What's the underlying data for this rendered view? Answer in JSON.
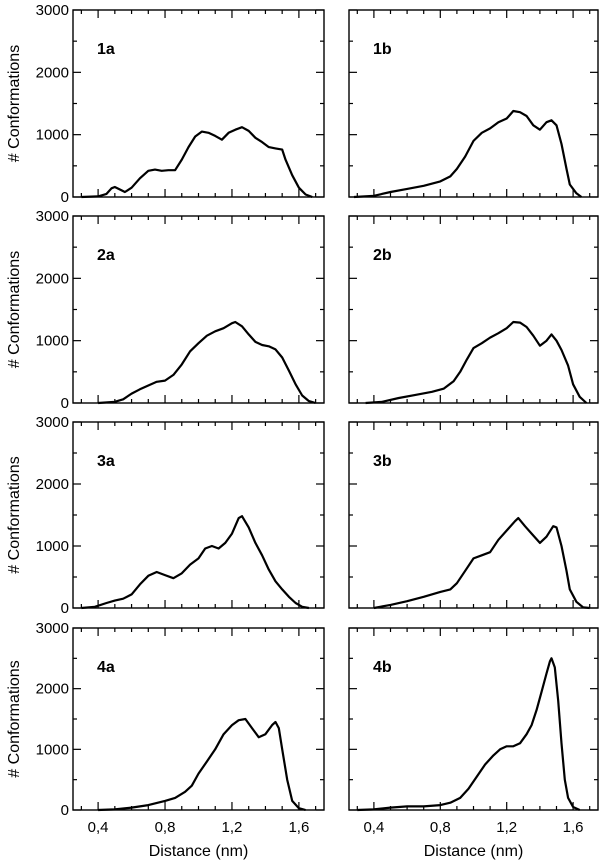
{
  "chart_data": {
    "type": "line",
    "layout": "4x2 grid of panels sharing axes",
    "xlabel": "Distance (nm)",
    "ylabel": "# Conformations",
    "xlim": [
      0.25,
      1.75
    ],
    "ylim": [
      0,
      3000
    ],
    "x_ticks": [
      0.4,
      0.8,
      1.2,
      1.6
    ],
    "x_tick_labels": [
      "0,4",
      "0,8",
      "1,2",
      "1,6"
    ],
    "y_ticks": [
      0,
      1000,
      2000,
      3000
    ],
    "y_tick_labels": [
      "0",
      "1000",
      "2000",
      "3000"
    ],
    "grid": false,
    "panels": [
      {
        "label": "1a",
        "points": [
          [
            0.3,
            0
          ],
          [
            0.4,
            10
          ],
          [
            0.45,
            50
          ],
          [
            0.48,
            140
          ],
          [
            0.5,
            160
          ],
          [
            0.53,
            120
          ],
          [
            0.56,
            80
          ],
          [
            0.6,
            150
          ],
          [
            0.65,
            300
          ],
          [
            0.7,
            420
          ],
          [
            0.74,
            440
          ],
          [
            0.78,
            420
          ],
          [
            0.82,
            430
          ],
          [
            0.86,
            430
          ],
          [
            0.9,
            600
          ],
          [
            0.94,
            800
          ],
          [
            0.98,
            970
          ],
          [
            1.02,
            1050
          ],
          [
            1.06,
            1030
          ],
          [
            1.1,
            980
          ],
          [
            1.14,
            920
          ],
          [
            1.18,
            1030
          ],
          [
            1.22,
            1080
          ],
          [
            1.26,
            1120
          ],
          [
            1.3,
            1060
          ],
          [
            1.34,
            950
          ],
          [
            1.38,
            880
          ],
          [
            1.42,
            800
          ],
          [
            1.46,
            780
          ],
          [
            1.5,
            760
          ],
          [
            1.52,
            600
          ],
          [
            1.56,
            350
          ],
          [
            1.6,
            150
          ],
          [
            1.64,
            40
          ],
          [
            1.68,
            0
          ]
        ]
      },
      {
        "label": "1b",
        "points": [
          [
            0.28,
            0
          ],
          [
            0.4,
            20
          ],
          [
            0.5,
            80
          ],
          [
            0.6,
            130
          ],
          [
            0.7,
            180
          ],
          [
            0.8,
            250
          ],
          [
            0.86,
            330
          ],
          [
            0.9,
            450
          ],
          [
            0.95,
            650
          ],
          [
            1.0,
            900
          ],
          [
            1.05,
            1030
          ],
          [
            1.1,
            1100
          ],
          [
            1.15,
            1200
          ],
          [
            1.2,
            1260
          ],
          [
            1.24,
            1380
          ],
          [
            1.28,
            1360
          ],
          [
            1.32,
            1300
          ],
          [
            1.36,
            1150
          ],
          [
            1.4,
            1080
          ],
          [
            1.44,
            1200
          ],
          [
            1.47,
            1230
          ],
          [
            1.5,
            1150
          ],
          [
            1.53,
            850
          ],
          [
            1.56,
            450
          ],
          [
            1.58,
            200
          ],
          [
            1.62,
            60
          ],
          [
            1.65,
            0
          ]
        ]
      },
      {
        "label": "2a",
        "points": [
          [
            0.4,
            0
          ],
          [
            0.5,
            20
          ],
          [
            0.55,
            60
          ],
          [
            0.6,
            150
          ],
          [
            0.65,
            220
          ],
          [
            0.7,
            280
          ],
          [
            0.75,
            340
          ],
          [
            0.8,
            360
          ],
          [
            0.85,
            450
          ],
          [
            0.9,
            620
          ],
          [
            0.95,
            830
          ],
          [
            1.0,
            960
          ],
          [
            1.05,
            1080
          ],
          [
            1.1,
            1150
          ],
          [
            1.15,
            1200
          ],
          [
            1.2,
            1280
          ],
          [
            1.22,
            1300
          ],
          [
            1.26,
            1230
          ],
          [
            1.3,
            1100
          ],
          [
            1.34,
            980
          ],
          [
            1.38,
            930
          ],
          [
            1.42,
            910
          ],
          [
            1.46,
            860
          ],
          [
            1.5,
            730
          ],
          [
            1.54,
            520
          ],
          [
            1.58,
            300
          ],
          [
            1.62,
            120
          ],
          [
            1.66,
            30
          ],
          [
            1.7,
            0
          ]
        ]
      },
      {
        "label": "2b",
        "points": [
          [
            0.35,
            0
          ],
          [
            0.45,
            20
          ],
          [
            0.55,
            80
          ],
          [
            0.65,
            130
          ],
          [
            0.75,
            180
          ],
          [
            0.82,
            230
          ],
          [
            0.88,
            350
          ],
          [
            0.92,
            500
          ],
          [
            0.96,
            700
          ],
          [
            1.0,
            880
          ],
          [
            1.05,
            960
          ],
          [
            1.1,
            1050
          ],
          [
            1.15,
            1120
          ],
          [
            1.2,
            1200
          ],
          [
            1.24,
            1300
          ],
          [
            1.28,
            1290
          ],
          [
            1.32,
            1220
          ],
          [
            1.36,
            1080
          ],
          [
            1.4,
            920
          ],
          [
            1.44,
            1000
          ],
          [
            1.47,
            1100
          ],
          [
            1.5,
            1000
          ],
          [
            1.53,
            850
          ],
          [
            1.57,
            600
          ],
          [
            1.6,
            300
          ],
          [
            1.64,
            100
          ],
          [
            1.68,
            0
          ]
        ]
      },
      {
        "label": "3a",
        "points": [
          [
            0.3,
            0
          ],
          [
            0.38,
            20
          ],
          [
            0.45,
            80
          ],
          [
            0.5,
            120
          ],
          [
            0.55,
            150
          ],
          [
            0.6,
            220
          ],
          [
            0.65,
            380
          ],
          [
            0.7,
            520
          ],
          [
            0.75,
            580
          ],
          [
            0.8,
            530
          ],
          [
            0.85,
            480
          ],
          [
            0.9,
            560
          ],
          [
            0.95,
            700
          ],
          [
            1.0,
            800
          ],
          [
            1.04,
            960
          ],
          [
            1.08,
            1000
          ],
          [
            1.12,
            960
          ],
          [
            1.16,
            1050
          ],
          [
            1.2,
            1200
          ],
          [
            1.24,
            1450
          ],
          [
            1.26,
            1480
          ],
          [
            1.3,
            1300
          ],
          [
            1.34,
            1050
          ],
          [
            1.38,
            850
          ],
          [
            1.42,
            620
          ],
          [
            1.46,
            430
          ],
          [
            1.5,
            300
          ],
          [
            1.54,
            180
          ],
          [
            1.58,
            80
          ],
          [
            1.62,
            20
          ],
          [
            1.66,
            0
          ]
        ]
      },
      {
        "label": "3b",
        "points": [
          [
            0.4,
            0
          ],
          [
            0.5,
            50
          ],
          [
            0.6,
            110
          ],
          [
            0.7,
            180
          ],
          [
            0.8,
            260
          ],
          [
            0.86,
            300
          ],
          [
            0.9,
            400
          ],
          [
            0.95,
            600
          ],
          [
            1.0,
            800
          ],
          [
            1.05,
            850
          ],
          [
            1.1,
            900
          ],
          [
            1.15,
            1100
          ],
          [
            1.2,
            1250
          ],
          [
            1.25,
            1400
          ],
          [
            1.27,
            1450
          ],
          [
            1.31,
            1320
          ],
          [
            1.35,
            1200
          ],
          [
            1.4,
            1050
          ],
          [
            1.44,
            1150
          ],
          [
            1.48,
            1320
          ],
          [
            1.5,
            1300
          ],
          [
            1.53,
            1000
          ],
          [
            1.56,
            600
          ],
          [
            1.58,
            300
          ],
          [
            1.62,
            100
          ],
          [
            1.66,
            10
          ],
          [
            1.7,
            0
          ]
        ]
      },
      {
        "label": "4a",
        "points": [
          [
            0.4,
            0
          ],
          [
            0.5,
            10
          ],
          [
            0.6,
            40
          ],
          [
            0.7,
            80
          ],
          [
            0.8,
            150
          ],
          [
            0.86,
            200
          ],
          [
            0.92,
            300
          ],
          [
            0.96,
            400
          ],
          [
            1.0,
            600
          ],
          [
            1.05,
            800
          ],
          [
            1.1,
            1000
          ],
          [
            1.15,
            1250
          ],
          [
            1.2,
            1400
          ],
          [
            1.24,
            1480
          ],
          [
            1.28,
            1500
          ],
          [
            1.32,
            1350
          ],
          [
            1.36,
            1200
          ],
          [
            1.4,
            1250
          ],
          [
            1.44,
            1400
          ],
          [
            1.46,
            1450
          ],
          [
            1.48,
            1350
          ],
          [
            1.5,
            1000
          ],
          [
            1.53,
            500
          ],
          [
            1.56,
            150
          ],
          [
            1.6,
            30
          ],
          [
            1.64,
            0
          ]
        ]
      },
      {
        "label": "4b",
        "points": [
          [
            0.3,
            0
          ],
          [
            0.4,
            10
          ],
          [
            0.5,
            40
          ],
          [
            0.6,
            60
          ],
          [
            0.7,
            60
          ],
          [
            0.8,
            80
          ],
          [
            0.86,
            120
          ],
          [
            0.92,
            200
          ],
          [
            0.97,
            350
          ],
          [
            1.02,
            550
          ],
          [
            1.07,
            750
          ],
          [
            1.12,
            900
          ],
          [
            1.16,
            1000
          ],
          [
            1.2,
            1050
          ],
          [
            1.24,
            1050
          ],
          [
            1.28,
            1100
          ],
          [
            1.32,
            1250
          ],
          [
            1.35,
            1400
          ],
          [
            1.38,
            1650
          ],
          [
            1.41,
            1950
          ],
          [
            1.44,
            2250
          ],
          [
            1.46,
            2450
          ],
          [
            1.47,
            2500
          ],
          [
            1.49,
            2350
          ],
          [
            1.51,
            1800
          ],
          [
            1.53,
            1100
          ],
          [
            1.55,
            500
          ],
          [
            1.57,
            200
          ],
          [
            1.6,
            50
          ],
          [
            1.64,
            0
          ]
        ]
      }
    ]
  }
}
